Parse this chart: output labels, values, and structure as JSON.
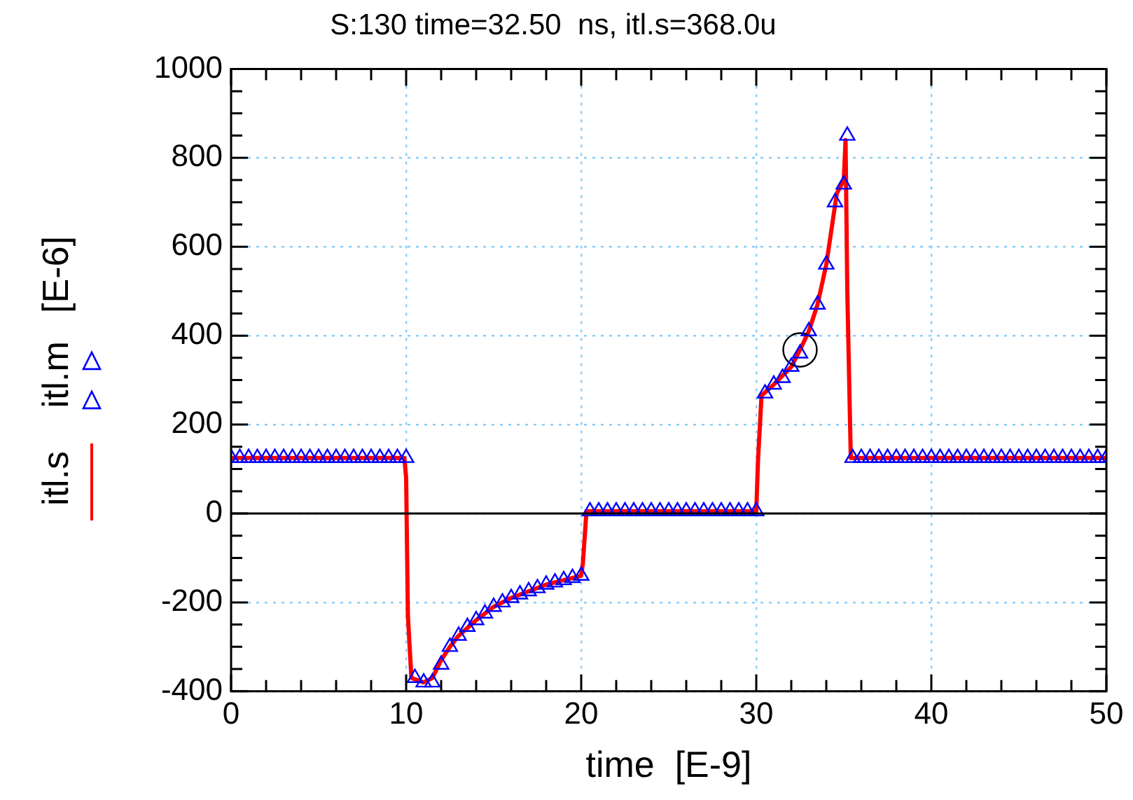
{
  "chart_data": {
    "type": "line",
    "title": "S:130 time=32.50  ns, itl.s=368.0u",
    "xlabel": "time  [E-9]",
    "ylabel": "[E-6]",
    "xlim": [
      0,
      50
    ],
    "xticks": [
      0,
      {
        "value": 2,
        "label": null
      },
      {
        "value": 4,
        "label": null
      },
      {
        "value": 6,
        "label": null
      },
      {
        "value": 8,
        "label": null
      },
      10,
      {
        "value": 12,
        "label": null
      },
      {
        "value": 14,
        "label": null
      },
      {
        "value": 16,
        "label": null
      },
      {
        "value": 18,
        "label": null
      },
      20,
      {
        "value": 22,
        "label": null
      },
      {
        "value": 24,
        "label": null
      },
      {
        "value": 26,
        "label": null
      },
      {
        "value": 28,
        "label": null
      },
      30,
      {
        "value": 32,
        "label": null
      },
      {
        "value": 34,
        "label": null
      },
      {
        "value": 36,
        "label": null
      },
      {
        "value": 38,
        "label": null
      },
      40,
      {
        "value": 42,
        "label": null
      },
      {
        "value": 44,
        "label": null
      },
      {
        "value": 46,
        "label": null
      },
      {
        "value": 48,
        "label": null
      },
      50
    ],
    "ylim": [
      -400,
      1000
    ],
    "yticks": [
      -400,
      {
        "value": -350,
        "label": null
      },
      {
        "value": -300,
        "label": null
      },
      {
        "value": -250,
        "label": null
      },
      -200,
      {
        "value": -150,
        "label": null
      },
      {
        "value": -100,
        "label": null
      },
      {
        "value": -50,
        "label": null
      },
      0,
      {
        "value": 50,
        "label": null
      },
      {
        "value": 100,
        "label": null
      },
      {
        "value": 150,
        "label": null
      },
      200,
      {
        "value": 250,
        "label": null
      },
      {
        "value": 300,
        "label": null
      },
      {
        "value": 350,
        "label": null
      },
      400,
      {
        "value": 450,
        "label": null
      },
      {
        "value": 500,
        "label": null
      },
      {
        "value": 550,
        "label": null
      },
      600,
      {
        "value": 650,
        "label": null
      },
      {
        "value": 700,
        "label": null
      },
      {
        "value": 750,
        "label": null
      },
      800,
      {
        "value": 850,
        "label": null
      },
      {
        "value": 900,
        "label": null
      },
      {
        "value": 950,
        "label": null
      },
      1000
    ],
    "grid": true,
    "legend": "left",
    "ref_lines": [
      {
        "axis": "y",
        "value": 0,
        "color": "#000000"
      }
    ],
    "series": [
      {
        "name": "itl.m",
        "type": "scatter",
        "color": "#0000ff",
        "marker": "triangle",
        "x": [
          0,
          0.5,
          1,
          1.5,
          2,
          2.5,
          3,
          3.5,
          4,
          4.5,
          5,
          5.5,
          6,
          6.5,
          7,
          7.5,
          8,
          8.5,
          9,
          9.5,
          10,
          10.5,
          11,
          11.5,
          12,
          12.5,
          13,
          13.5,
          14,
          14.5,
          15,
          15.5,
          16,
          16.5,
          17,
          17.5,
          18,
          18.5,
          19,
          19.5,
          20,
          20.5,
          21,
          21.5,
          22,
          22.5,
          23,
          23.5,
          24,
          24.5,
          25,
          25.5,
          26,
          26.5,
          27,
          27.5,
          28,
          28.5,
          29,
          29.5,
          30,
          30.5,
          31,
          31.5,
          32,
          32.5,
          33,
          33.5,
          34,
          34.5,
          35,
          35.2,
          35.5,
          36,
          36.5,
          37,
          37.5,
          38,
          38.5,
          39,
          39.5,
          40,
          40.5,
          41,
          41.5,
          42,
          42.5,
          43,
          43.5,
          44,
          44.5,
          45,
          45.5,
          46,
          46.5,
          47,
          47.5,
          48,
          48.5,
          49,
          49.5,
          50
        ],
        "values": [
          125,
          125,
          125,
          125,
          125,
          125,
          125,
          125,
          125,
          125,
          125,
          125,
          125,
          125,
          125,
          125,
          125,
          125,
          125,
          125,
          125,
          -370,
          -380,
          -380,
          -340,
          -300,
          -275,
          -255,
          -240,
          -225,
          -210,
          -200,
          -190,
          -182,
          -175,
          -168,
          -160,
          -155,
          -150,
          -145,
          -140,
          5,
          5,
          5,
          5,
          5,
          5,
          5,
          5,
          5,
          5,
          5,
          5,
          5,
          5,
          5,
          5,
          5,
          5,
          5,
          5,
          270,
          290,
          305,
          330,
          360,
          410,
          470,
          560,
          700,
          740,
          850,
          125,
          125,
          125,
          125,
          125,
          125,
          125,
          125,
          125,
          125,
          125,
          125,
          125,
          125,
          125,
          125,
          125,
          125,
          125,
          125,
          125,
          125,
          125,
          125,
          125,
          125,
          125,
          125,
          125,
          125
        ]
      },
      {
        "name": "itl.s",
        "type": "line",
        "color": "#ff0000",
        "marker": "none",
        "x": [
          0,
          9.9,
          10,
          10.1,
          10.3,
          11,
          11.5,
          12,
          12.5,
          13,
          14,
          15,
          16,
          17,
          18,
          19,
          20,
          20.1,
          20.3,
          30,
          30.1,
          30.3,
          31,
          32,
          32.5,
          33,
          33.5,
          34,
          34.3,
          34.6,
          35,
          35.1,
          35.2,
          35.4,
          50
        ],
        "values": [
          125,
          125,
          80,
          -230,
          -370,
          -380,
          -370,
          -330,
          -300,
          -275,
          -240,
          -210,
          -190,
          -175,
          -160,
          -150,
          -140,
          -110,
          5,
          5,
          120,
          265,
          290,
          330,
          368,
          410,
          470,
          560,
          640,
          720,
          750,
          840,
          500,
          125,
          125
        ]
      },
      {
        "type": "scatter",
        "color": "#000000",
        "marker": "circle",
        "x": [
          32.5
        ],
        "values": [
          368
        ]
      }
    ]
  }
}
